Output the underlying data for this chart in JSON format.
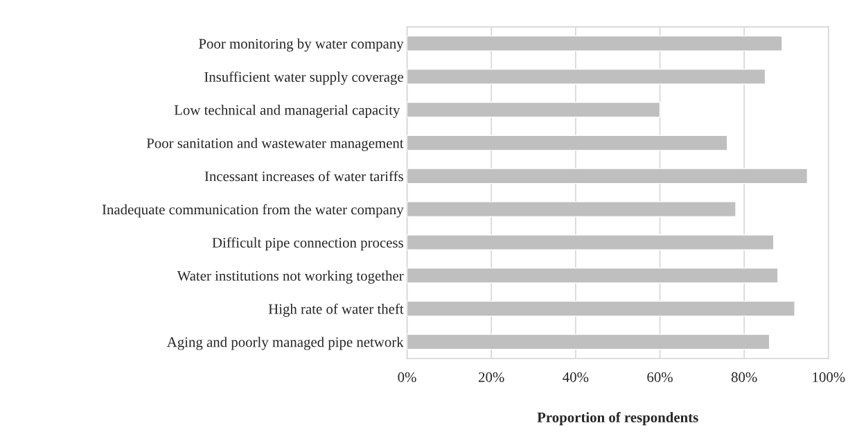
{
  "chart_data": {
    "type": "bar",
    "orientation": "horizontal",
    "xlabel": "Proportion of respondents",
    "categories": [
      "Poor monitoring by water company",
      "Insufficient water supply coverage",
      "Low technical and managerial capacity ",
      "Poor sanitation and wastewater management",
      "Incessant increases of water tariffs",
      "Inadequate communication from the water company",
      "Difficult pipe connection process",
      "Water institutions not working together",
      "High rate of water theft",
      "Aging and poorly managed pipe network"
    ],
    "values": [
      89,
      85,
      60,
      76,
      95,
      78,
      87,
      88,
      92,
      86
    ],
    "color": "#bfbfbf",
    "xlim": [
      0,
      100
    ],
    "xticks": [
      {
        "value": 0,
        "label": "0%"
      },
      {
        "value": 20,
        "label": "20%"
      },
      {
        "value": 40,
        "label": "40%"
      },
      {
        "value": 60,
        "label": "60%"
      },
      {
        "value": 80,
        "label": "80%"
      },
      {
        "value": 100,
        "label": "100%"
      }
    ],
    "grid": "x",
    "legend": false
  }
}
